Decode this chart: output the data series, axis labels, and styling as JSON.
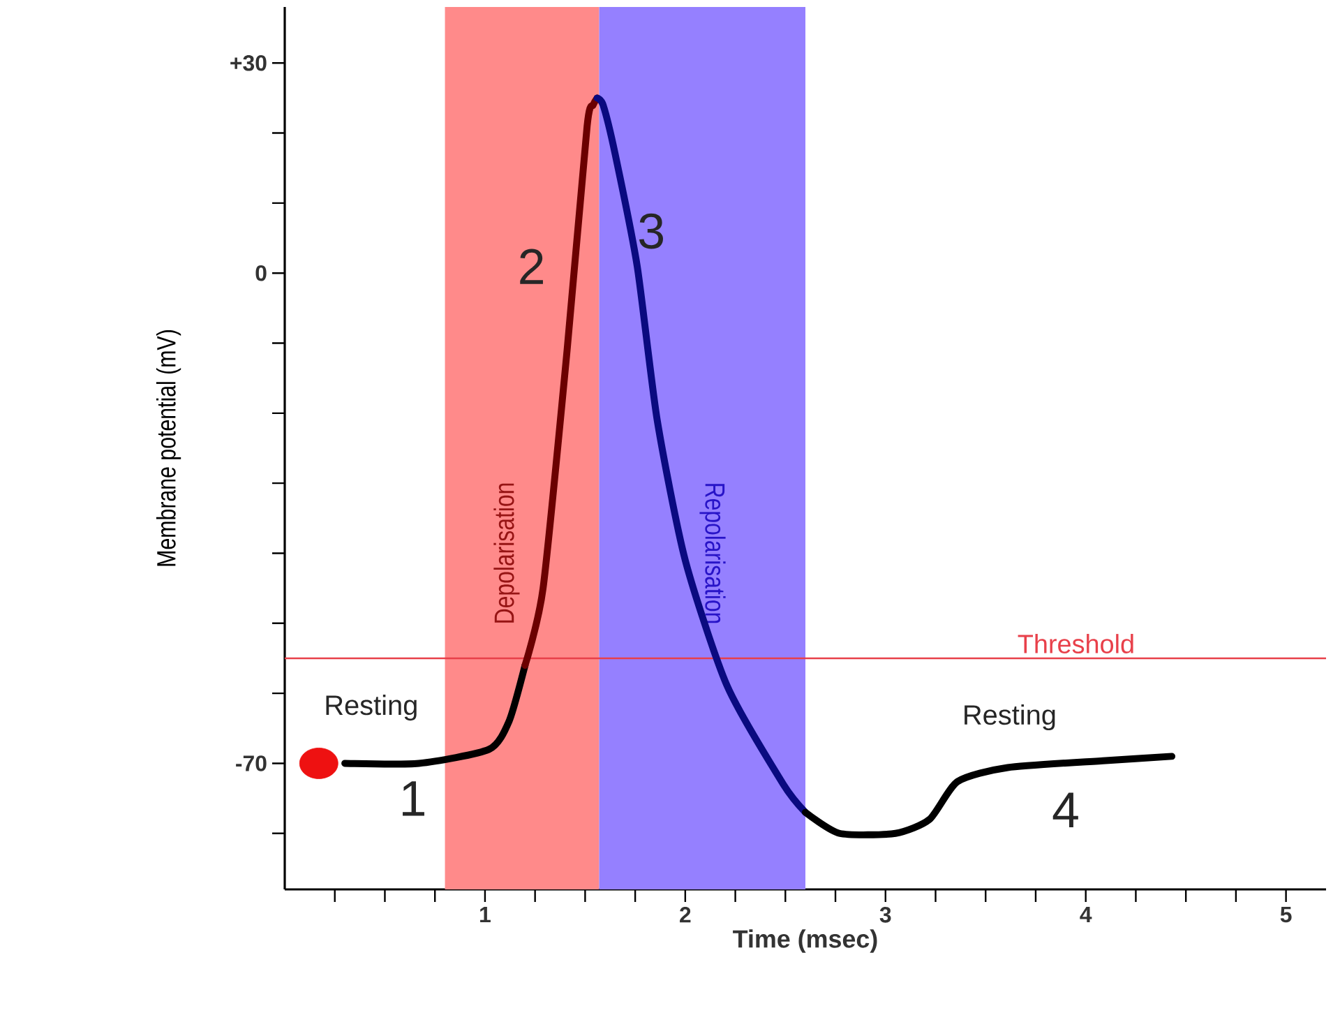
{
  "chart_data": {
    "type": "line",
    "xlabel": "Time (msec)",
    "ylabel": "Membrane potential (mV)",
    "xlim": [
      0,
      5.2
    ],
    "ylim": [
      -88,
      38
    ],
    "xticks": [
      {
        "value": 0.25,
        "label": null
      },
      {
        "value": 0.5,
        "label": null
      },
      {
        "value": 0.75,
        "label": null
      },
      1,
      {
        "value": 1.25,
        "label": null
      },
      {
        "value": 1.5,
        "label": null
      },
      {
        "value": 1.75,
        "label": null
      },
      2,
      {
        "value": 2.25,
        "label": null
      },
      {
        "value": 2.5,
        "label": null
      },
      {
        "value": 2.75,
        "label": null
      },
      3,
      {
        "value": 3.25,
        "label": null
      },
      {
        "value": 3.5,
        "label": null
      },
      {
        "value": 3.75,
        "label": null
      },
      4,
      {
        "value": 4.25,
        "label": null
      },
      {
        "value": 4.5,
        "label": null
      },
      {
        "value": 4.75,
        "label": null
      },
      5
    ],
    "yticks": [
      {
        "value": -80,
        "label": null
      },
      {
        "value": -70,
        "label": "-70"
      },
      {
        "value": -60,
        "label": null
      },
      {
        "value": -50,
        "label": null
      },
      {
        "value": -40,
        "label": null
      },
      {
        "value": -30,
        "label": null
      },
      {
        "value": -20,
        "label": null
      },
      {
        "value": -10,
        "label": null
      },
      {
        "value": 0,
        "label": "0"
      },
      {
        "value": 10,
        "label": null
      },
      {
        "value": 20,
        "label": null
      },
      {
        "value": 30,
        "label": "+30"
      }
    ],
    "grid": false,
    "bands": [
      {
        "axis": "x",
        "from": 0.8,
        "to": 1.57,
        "label": "Depolarisation",
        "color": "#ff8a8a"
      },
      {
        "axis": "x",
        "from": 1.57,
        "to": 2.6,
        "label": "Repolarisation",
        "color": "#9580ff"
      }
    ],
    "ref_lines": [
      {
        "axis": "y",
        "value": -55,
        "label": "Threshold",
        "color": "#e8404a"
      }
    ],
    "series": [
      {
        "color": "#000000",
        "marker": "none",
        "x": [
          0.3,
          0.67,
          1.02,
          1.12,
          1.2
        ],
        "values": [
          -70,
          -70,
          -68,
          -64,
          -56
        ]
      },
      {
        "color": "#6b0000",
        "marker": "none",
        "x": [
          1.2,
          1.29,
          1.41,
          1.51,
          1.54,
          1.56
        ],
        "values": [
          -56,
          -45,
          -11,
          21,
          24,
          25
        ]
      },
      {
        "color": "#0a0a80",
        "marker": "none",
        "x": [
          1.56,
          1.59,
          1.65,
          1.76,
          1.86,
          2.0,
          2.21,
          2.49,
          2.6
        ],
        "values": [
          25,
          24,
          17,
          1,
          -21,
          -41,
          -59,
          -73,
          -77
        ]
      },
      {
        "color": "#000000",
        "marker": "none",
        "x": [
          2.6,
          2.77,
          3.05,
          3.22,
          3.36,
          3.61,
          4.1,
          4.43
        ],
        "values": [
          -77,
          -80,
          -80,
          -78,
          -72.6,
          -70.6,
          -69.6,
          -69
        ]
      },
      {
        "type": "scatter",
        "color": "#ee1111",
        "marker": "circle",
        "x": [
          0.17
        ],
        "values": [
          -70
        ]
      }
    ],
    "annotations": [
      "Resting",
      "1",
      "2",
      "3",
      "Resting",
      "4"
    ]
  }
}
